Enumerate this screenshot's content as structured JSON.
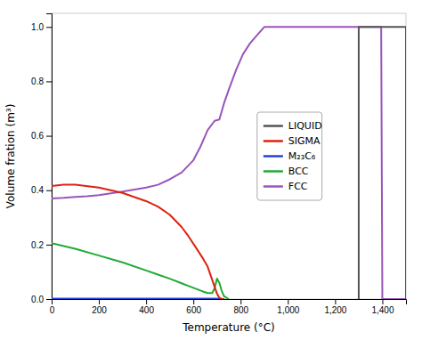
{
  "chart_data": {
    "type": "line",
    "xlabel": "Temperature (°C)",
    "ylabel": "Volume fration (m³)",
    "xlim": [
      0,
      1500
    ],
    "ylim": [
      0.0,
      1.05
    ],
    "xticks": [
      0,
      200,
      400,
      600,
      800,
      {
        "value": 1000,
        "label": "1,000"
      },
      {
        "value": 1200,
        "label": "1,200"
      },
      {
        "value": 1400,
        "label": "1,400"
      }
    ],
    "yticks": [
      {
        "value": 0.0,
        "label": "0.0"
      },
      0.2,
      0.4,
      0.6,
      0.8,
      {
        "value": 1.0,
        "label": "1.0"
      }
    ],
    "grid": false,
    "legend": "right",
    "series": [
      {
        "name": "LIQUID",
        "color": "#555555",
        "x": [
          1300,
          1300,
          1500,
          1500
        ],
        "values": [
          0.0,
          1.0,
          1.0,
          0.0
        ]
      },
      {
        "name": "SIGMA",
        "color": "#dd2211",
        "x": [
          0,
          50,
          100,
          200,
          300,
          400,
          450,
          500,
          550,
          580,
          610,
          640,
          660,
          680,
          700,
          710,
          720,
          730
        ],
        "values": [
          0.415,
          0.42,
          0.42,
          0.41,
          0.39,
          0.36,
          0.34,
          0.31,
          0.265,
          0.23,
          0.19,
          0.15,
          0.12,
          0.07,
          0.02,
          0.005,
          0.0,
          0.0
        ]
      },
      {
        "name": "M₂₃C₆",
        "color": "#2244dd",
        "x": [
          0,
          700,
          730
        ],
        "values": [
          0.002,
          0.002,
          0.0
        ]
      },
      {
        "name": "BCC",
        "color": "#22aa33",
        "x": [
          0,
          100,
          200,
          300,
          400,
          450,
          500,
          550,
          580,
          610,
          640,
          660,
          680,
          690,
          700,
          710,
          720,
          730,
          750
        ],
        "values": [
          0.205,
          0.185,
          0.16,
          0.135,
          0.105,
          0.09,
          0.075,
          0.058,
          0.048,
          0.038,
          0.028,
          0.022,
          0.022,
          0.04,
          0.075,
          0.06,
          0.03,
          0.01,
          0.0
        ]
      },
      {
        "name": "FCC",
        "color": "#9955bb",
        "x": [
          0,
          50,
          100,
          150,
          200,
          300,
          400,
          450,
          500,
          550,
          600,
          630,
          660,
          690,
          710,
          730,
          750,
          780,
          810,
          840,
          870,
          900,
          950,
          1000,
          1100,
          1200,
          1280,
          1290,
          1295,
          1300,
          1310,
          1350,
          1360,
          1370,
          1380,
          1390,
          1395,
          1400,
          1410,
          1500
        ],
        "values": [
          0.37,
          0.372,
          0.375,
          0.378,
          0.382,
          0.395,
          0.41,
          0.42,
          0.44,
          0.465,
          0.51,
          0.56,
          0.62,
          0.655,
          0.66,
          0.72,
          0.77,
          0.84,
          0.9,
          0.94,
          0.97,
          1.0,
          1.0,
          1.0,
          1.0,
          1.0,
          1.0,
          1.0,
          1.0,
          1.0,
          1.0,
          1.0,
          1.0,
          1.0,
          1.0,
          1.0,
          1.0,
          0.0,
          0.0,
          0.0
        ]
      }
    ]
  }
}
